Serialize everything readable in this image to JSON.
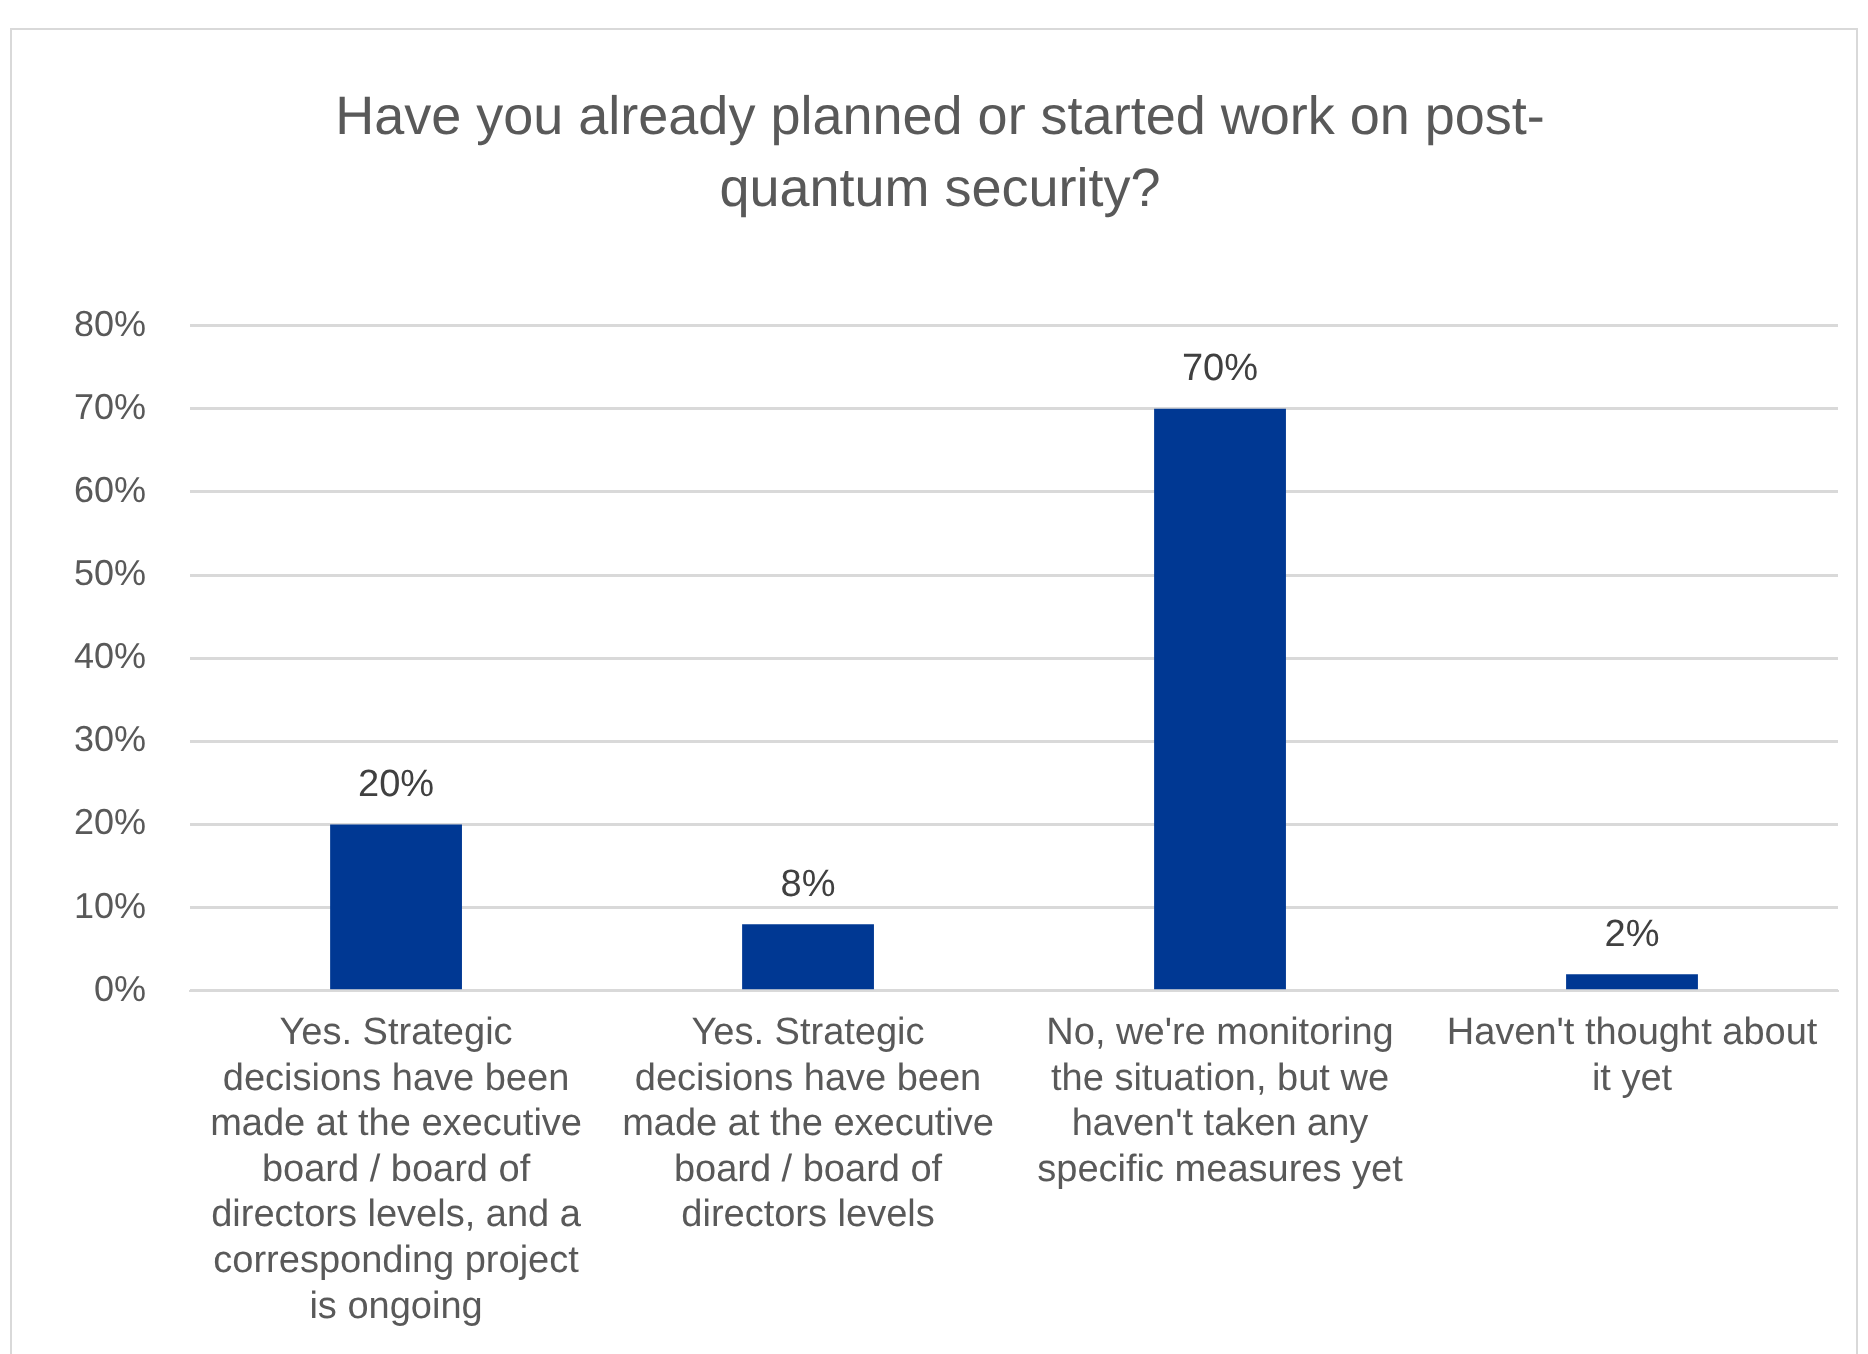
{
  "chart_data": {
    "type": "bar",
    "title": "Have you already planned or started work on post-quantum security?",
    "categories": [
      "Yes. Strategic decisions have been made at the executive board / board of directors levels, and a corresponding project is ongoing",
      "Yes. Strategic decisions have been made at the executive board / board of directors levels",
      "No, we're monitoring the situation, but we haven't taken any specific measures yet",
      "Haven't thought about it yet"
    ],
    "values": [
      20,
      8,
      70,
      2
    ],
    "value_labels": [
      "20%",
      "8%",
      "70%",
      "2%"
    ],
    "color": "#003893",
    "ylim": [
      0,
      80
    ],
    "yticks": [
      {
        "value": 0,
        "label": "0%"
      },
      {
        "value": 10,
        "label": "10%"
      },
      {
        "value": 20,
        "label": "20%"
      },
      {
        "value": 30,
        "label": "30%"
      },
      {
        "value": 40,
        "label": "40%"
      },
      {
        "value": 50,
        "label": "50%"
      },
      {
        "value": 60,
        "label": "60%"
      },
      {
        "value": 70,
        "label": "70%"
      },
      {
        "value": 80,
        "label": "80%"
      }
    ],
    "grid": "y",
    "legend": false
  }
}
